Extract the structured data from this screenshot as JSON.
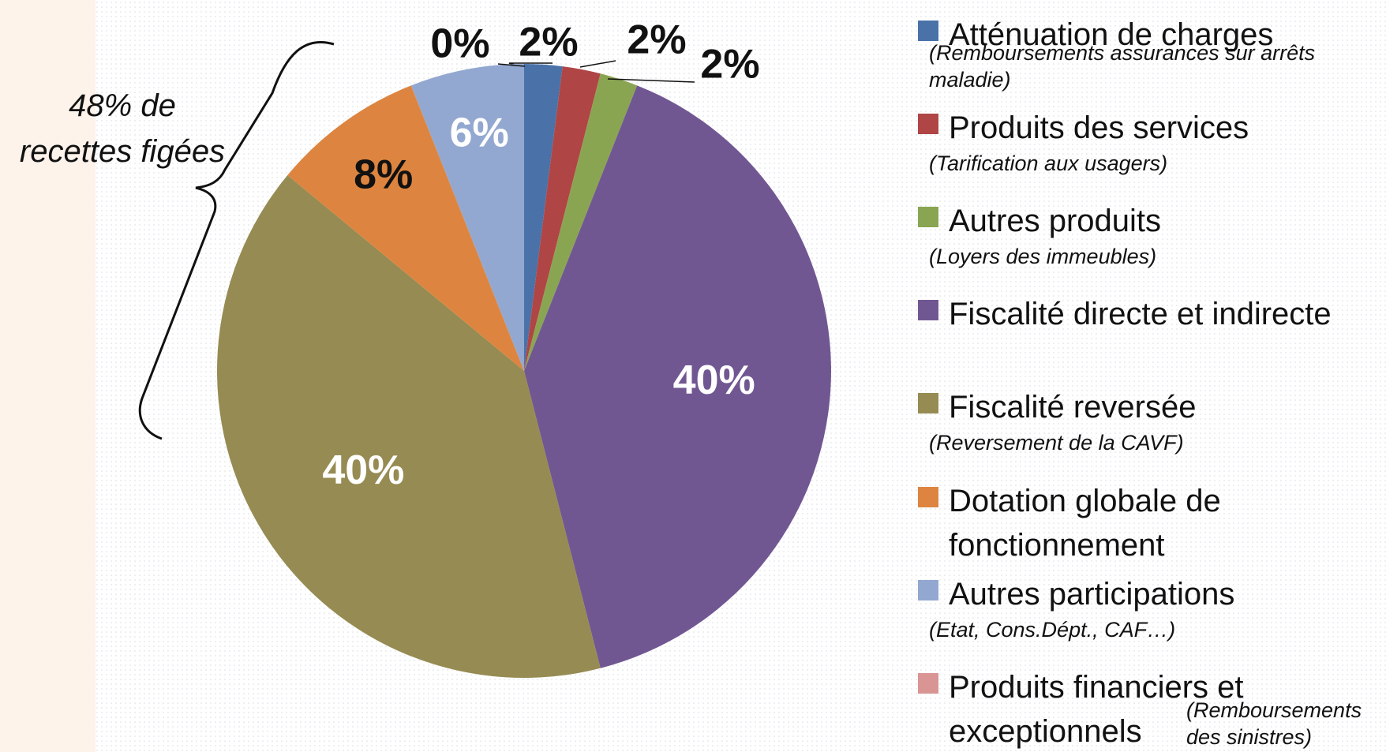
{
  "chart_data": {
    "type": "pie",
    "categories": [
      "Atténuation de charges",
      "Produits des services",
      "Autres produits",
      "Fiscalité directe et indirecte",
      "Fiscalité reversée",
      "Dotation globale de fonctionnement",
      "Autres participations",
      "Produits financiers et exceptionnels"
    ],
    "notes": [
      "(Remboursements assurances sur arrêts maladie)",
      "(Tarification aux usagers)",
      "(Loyers des immeubles)",
      null,
      "(Reversement de la CAVF)",
      null,
      "(Etat, Cons.Dépt., CAF…)",
      "(Remboursements des sinistres)"
    ],
    "values": [
      2,
      2,
      2,
      40,
      40,
      8,
      6,
      0
    ],
    "value_labels": [
      "2%",
      "2%",
      "2%",
      "40%",
      "40%",
      "8%",
      "6%",
      "0%"
    ],
    "colors": [
      "#4a72a8",
      "#b04545",
      "#8aa552",
      "#715792",
      "#968b52",
      "#dd8540",
      "#93a8d0",
      "#d99594"
    ],
    "annotation_lines": [
      "48% de",
      "recettes figées"
    ]
  }
}
